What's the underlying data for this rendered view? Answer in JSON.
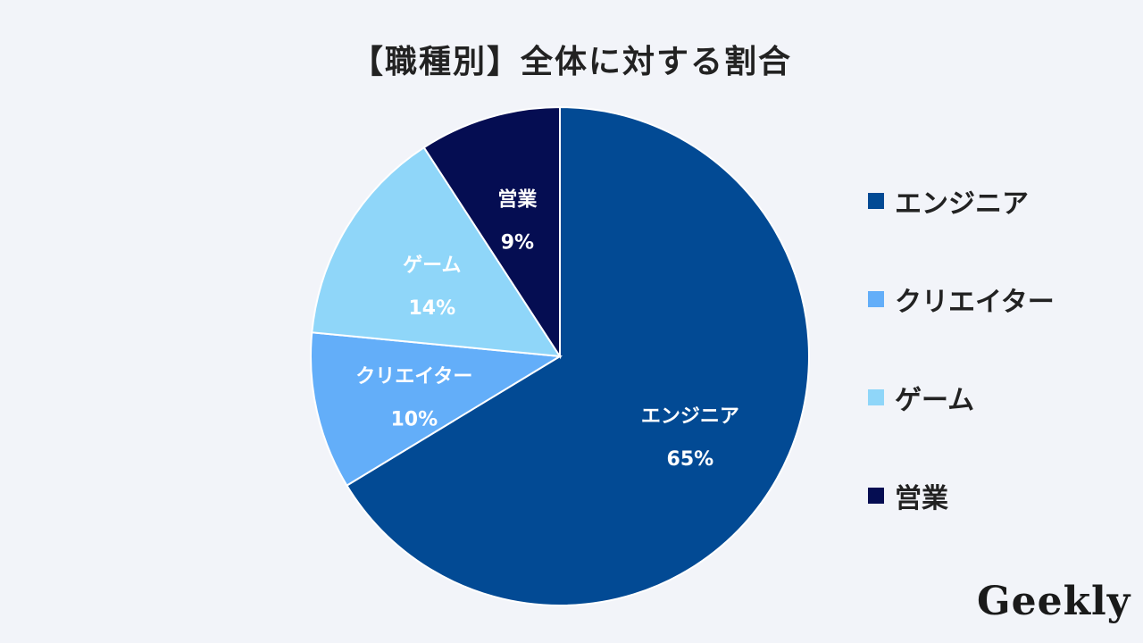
{
  "chart_data": {
    "type": "pie",
    "title": "【職種別】全体に対する割合",
    "legend_position": "right",
    "slices": [
      {
        "label": "エンジニア",
        "value": 65,
        "display": "65%",
        "color": "#024a94"
      },
      {
        "label": "クリエイター",
        "value": 10,
        "display": "10%",
        "color": "#63aef9"
      },
      {
        "label": "ゲーム",
        "value": 14,
        "display": "14%",
        "color": "#8fd6f9"
      },
      {
        "label": "営業",
        "value": 9,
        "display": "9%",
        "color": "#050d52"
      }
    ],
    "legend": [
      {
        "label": "エンジニア",
        "color": "#024a94"
      },
      {
        "label": "クリエイター",
        "color": "#63aef9"
      },
      {
        "label": "ゲーム",
        "color": "#8fd6f9"
      },
      {
        "label": "営業",
        "color": "#050d52"
      }
    ]
  },
  "branding": {
    "logo_text": "Geekly"
  }
}
